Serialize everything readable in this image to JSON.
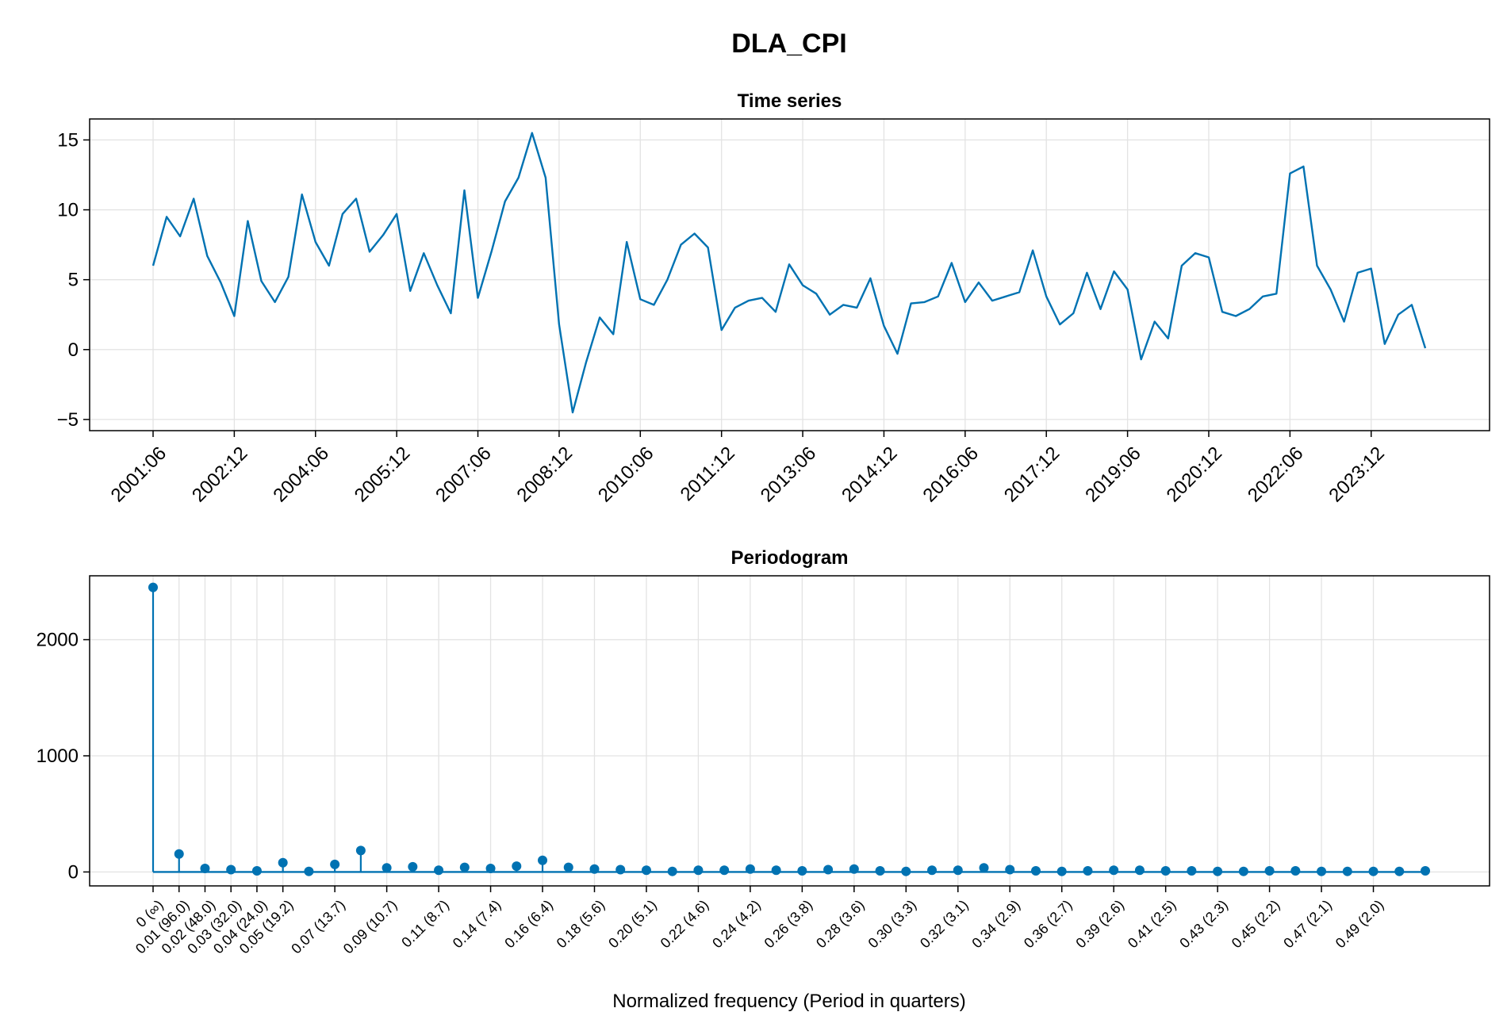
{
  "figure": {
    "title": "DLA_CPI"
  },
  "colors": {
    "series": "#0072B2",
    "grid": "#e3e3e3",
    "axis": "#000000"
  },
  "chart_data": [
    {
      "type": "line",
      "title": "Time series",
      "xlabel": "",
      "ylabel": "",
      "x_start": "2001:06",
      "x_step": "quarter",
      "xticks": [
        "2001:06",
        "2002:12",
        "2004:06",
        "2005:12",
        "2007:06",
        "2008:12",
        "2010:06",
        "2011:12",
        "2013:06",
        "2014:12",
        "2016:06",
        "2017:12",
        "2019:06",
        "2020:12",
        "2022:06",
        "2023:12"
      ],
      "yticks": [
        -5,
        0,
        5,
        10,
        15
      ],
      "ylim": [
        -5.8,
        16.5
      ],
      "grid": true,
      "series": [
        {
          "values": [
            6.0,
            9.5,
            8.1,
            10.8,
            6.7,
            4.8,
            2.4,
            9.2,
            4.9,
            3.4,
            5.2,
            11.1,
            7.7,
            6.0,
            9.7,
            10.8,
            7.0,
            8.2,
            9.7,
            4.2,
            6.9,
            4.6,
            2.6,
            11.4,
            3.7,
            7.0,
            10.6,
            12.3,
            15.5,
            12.3,
            1.8,
            -4.5,
            -0.9,
            2.3,
            1.1,
            7.7,
            3.6,
            3.2,
            5.0,
            7.5,
            8.3,
            7.3,
            1.4,
            3.0,
            3.5,
            3.7,
            2.7,
            6.1,
            4.6,
            4.0,
            2.5,
            3.2,
            3.0,
            5.1,
            1.7,
            -0.3,
            3.3,
            3.4,
            3.8,
            6.2,
            3.4,
            4.8,
            3.5,
            3.8,
            4.1,
            7.1,
            3.8,
            1.8,
            2.6,
            5.5,
            2.9,
            5.6,
            4.3,
            -0.7,
            2.0,
            0.8,
            6.0,
            6.9,
            6.6,
            2.7,
            2.4,
            2.9,
            3.8,
            4.0,
            12.6,
            13.1,
            6.0,
            4.3,
            2.0,
            5.5,
            5.8,
            0.4,
            2.5,
            3.2,
            0.1
          ]
        }
      ]
    },
    {
      "type": "scatter",
      "subtype": "stem",
      "title": "Periodogram",
      "xlabel": "Normalized frequency (Period in quarters)",
      "ylabel": "",
      "xticks": [
        "0 (∞)",
        "0.01 (96.0)",
        "0.02 (48.0)",
        "0.03 (32.0)",
        "0.04 (24.0)",
        "0.05 (19.2)",
        "0.07 (13.7)",
        "0.09 (10.7)",
        "0.11 (8.7)",
        "0.14 (7.4)",
        "0.16 (6.4)",
        "0.18 (5.6)",
        "0.20 (5.1)",
        "0.22 (4.6)",
        "0.24 (4.2)",
        "0.26 (3.8)",
        "0.28 (3.6)",
        "0.30 (3.3)",
        "0.32 (3.1)",
        "0.34 (2.9)",
        "0.36 (2.7)",
        "0.39 (2.6)",
        "0.41 (2.5)",
        "0.43 (2.3)",
        "0.45 (2.2)",
        "0.47 (2.1)",
        "0.49 (2.0)"
      ],
      "yticks": [
        0,
        1000,
        2000
      ],
      "ylim": [
        -120,
        2550
      ],
      "grid": true,
      "series": [
        {
          "values": [
            2450,
            155,
            30,
            20,
            10,
            80,
            5,
            65,
            185,
            35,
            45,
            15,
            40,
            30,
            50,
            100,
            40,
            25,
            20,
            15,
            5,
            15,
            15,
            25,
            15,
            10,
            20,
            25,
            10,
            5,
            15,
            15,
            35,
            20,
            10,
            5,
            10,
            15,
            15,
            10,
            10,
            5,
            5,
            10,
            10,
            5,
            5,
            5,
            5,
            10
          ]
        }
      ]
    }
  ]
}
